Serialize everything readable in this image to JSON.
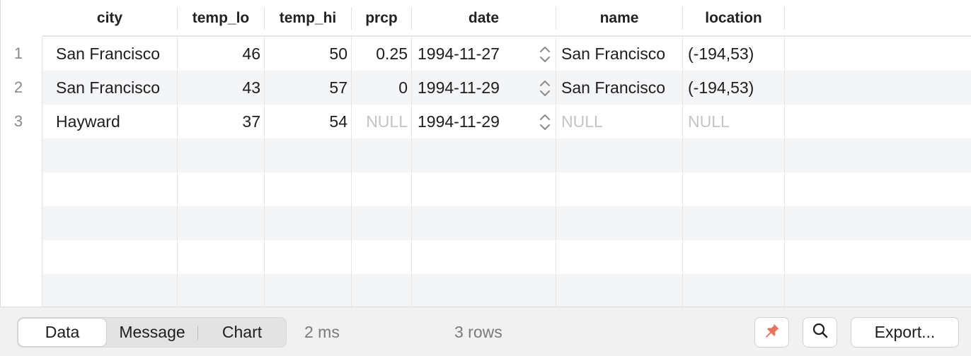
{
  "grid": {
    "columns": [
      "city",
      "temp_lo",
      "temp_hi",
      "prcp",
      "date",
      "name",
      "location"
    ],
    "row_numbers": [
      "1",
      "2",
      "3"
    ],
    "rows": [
      {
        "city": "San Francisco",
        "temp_lo": "46",
        "temp_hi": "50",
        "prcp": "0.25",
        "date": "1994-11-27",
        "name": "San Francisco",
        "location": "(-194,53)"
      },
      {
        "city": "San Francisco",
        "temp_lo": "43",
        "temp_hi": "57",
        "prcp": "0",
        "date": "1994-11-29",
        "name": "San Francisco",
        "location": "(-194,53)"
      },
      {
        "city": "Hayward",
        "temp_lo": "37",
        "temp_hi": "54",
        "prcp": "NULL",
        "date": "1994-11-29",
        "name": "NULL",
        "location": "NULL"
      }
    ]
  },
  "toolbar": {
    "tabs": [
      "Data",
      "Message",
      "Chart"
    ],
    "active_tab": "Data",
    "elapsed": "2 ms",
    "row_count": "3 rows",
    "pin_icon": "pin-icon",
    "search_icon": "search-icon",
    "export_label": "Export..."
  },
  "colors": {
    "pin_accent": "#e8735a",
    "null_text": "#c4c4c4",
    "alt_row": "#f4f5f6"
  }
}
